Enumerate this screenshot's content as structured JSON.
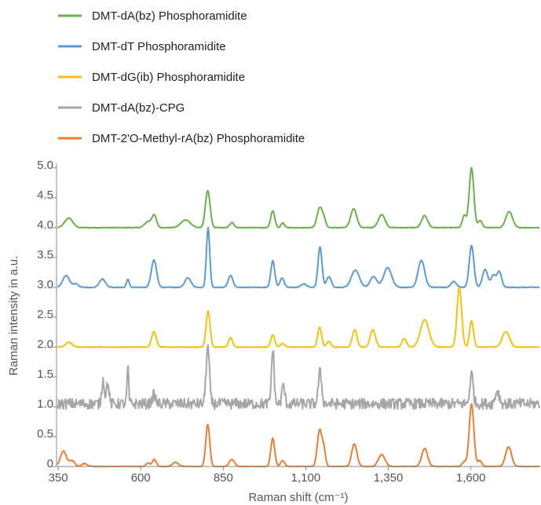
{
  "chart_data": {
    "type": "line",
    "title": "",
    "xlabel": "Raman shift (cm⁻¹)",
    "ylabel": "Raman intensity in a.u.",
    "xlim": [
      345,
      1810
    ],
    "ylim": [
      0,
      5.05
    ],
    "x_ticks": [
      350,
      600,
      850,
      1100,
      1350,
      1600
    ],
    "x_tick_labels": [
      "350",
      "600",
      "850",
      "1,100",
      "1,350",
      "1,600"
    ],
    "y_ticks": [
      0,
      0.5,
      1.0,
      1.5,
      2.0,
      2.5,
      3.0,
      3.5,
      4.0,
      4.5,
      5.0
    ],
    "y_tick_labels": [
      "0",
      "0.5",
      "1.0",
      "1.5",
      "2.0",
      "2.5",
      "3.0",
      "3.5",
      "4.0",
      "4.5",
      "5.0"
    ],
    "grid": false,
    "legend_position": "top-left",
    "series": [
      {
        "name": "DMT-dA(bz) Phosphoramidite",
        "color": "#6ab04c",
        "baseline": 4.0,
        "peaks": [
          [
            382,
            0.16,
            12
          ],
          [
            622,
            0.1,
            10
          ],
          [
            641,
            0.2,
            7
          ],
          [
            736,
            0.13,
            14
          ],
          [
            803,
            0.62,
            7
          ],
          [
            876,
            0.09,
            6
          ],
          [
            1000,
            0.28,
            6
          ],
          [
            1030,
            0.08,
            5
          ],
          [
            1142,
            0.33,
            8
          ],
          [
            1155,
            0.12,
            6
          ],
          [
            1245,
            0.32,
            9
          ],
          [
            1330,
            0.22,
            10
          ],
          [
            1460,
            0.2,
            9
          ],
          [
            1580,
            0.2,
            6
          ],
          [
            1602,
            1.0,
            7
          ],
          [
            1628,
            0.12,
            6
          ],
          [
            1716,
            0.27,
            10
          ]
        ]
      },
      {
        "name": "DMT-dT Phosphoramidite",
        "color": "#5b9bd5",
        "baseline": 3.0,
        "peaks": [
          [
            374,
            0.2,
            10
          ],
          [
            403,
            0.06,
            8
          ],
          [
            484,
            0.14,
            9
          ],
          [
            561,
            0.14,
            4
          ],
          [
            640,
            0.46,
            8
          ],
          [
            743,
            0.16,
            9
          ],
          [
            804,
            1.0,
            5
          ],
          [
            872,
            0.2,
            7
          ],
          [
            1000,
            0.44,
            6
          ],
          [
            1028,
            0.16,
            6
          ],
          [
            1094,
            0.06,
            8
          ],
          [
            1143,
            0.68,
            6
          ],
          [
            1170,
            0.18,
            7
          ],
          [
            1250,
            0.29,
            12
          ],
          [
            1305,
            0.18,
            10
          ],
          [
            1348,
            0.33,
            12
          ],
          [
            1450,
            0.45,
            10
          ],
          [
            1548,
            0.1,
            8
          ],
          [
            1602,
            0.7,
            7
          ],
          [
            1643,
            0.3,
            8
          ],
          [
            1668,
            0.2,
            7
          ],
          [
            1686,
            0.26,
            7
          ]
        ]
      },
      {
        "name": "DMT-dG(ib) Phosphoramidite",
        "color": "#f4c20d",
        "baseline": 2.0,
        "peaks": [
          [
            382,
            0.08,
            10
          ],
          [
            640,
            0.26,
            7
          ],
          [
            804,
            0.6,
            6
          ],
          [
            872,
            0.16,
            6
          ],
          [
            1000,
            0.2,
            6
          ],
          [
            1030,
            0.06,
            6
          ],
          [
            1142,
            0.33,
            6
          ],
          [
            1170,
            0.1,
            6
          ],
          [
            1248,
            0.29,
            7
          ],
          [
            1303,
            0.29,
            8
          ],
          [
            1398,
            0.14,
            7
          ],
          [
            1460,
            0.46,
            13
          ],
          [
            1565,
            1.0,
            7
          ],
          [
            1602,
            0.44,
            6
          ],
          [
            1706,
            0.26,
            11
          ]
        ]
      },
      {
        "name": "DMT-dA(bz)-CPG",
        "color": "#a6a6a6",
        "baseline": 1.05,
        "peaks": [
          [
            486,
            0.4,
            4
          ],
          [
            500,
            0.34,
            4
          ],
          [
            561,
            0.6,
            2.5
          ],
          [
            640,
            0.15,
            5
          ],
          [
            803,
            0.95,
            5
          ],
          [
            1000,
            0.92,
            4
          ],
          [
            1032,
            0.32,
            4
          ],
          [
            1143,
            0.53,
            5
          ],
          [
            1602,
            0.5,
            5
          ],
          [
            1680,
            0.22,
            6
          ]
        ]
      },
      {
        "name": "DMT-2'O-Methyl-rA(bz) Phosphoramidite",
        "color": "#ed7d31",
        "baseline": 0.0,
        "peaks": [
          [
            366,
            0.26,
            9
          ],
          [
            392,
            0.1,
            8
          ],
          [
            430,
            0.05,
            8
          ],
          [
            622,
            0.06,
            6
          ],
          [
            641,
            0.12,
            6
          ],
          [
            706,
            0.07,
            9
          ],
          [
            803,
            0.71,
            6
          ],
          [
            876,
            0.12,
            8
          ],
          [
            1000,
            0.47,
            6
          ],
          [
            1030,
            0.1,
            6
          ],
          [
            1142,
            0.62,
            7
          ],
          [
            1155,
            0.25,
            5
          ],
          [
            1247,
            0.38,
            8
          ],
          [
            1330,
            0.2,
            10
          ],
          [
            1460,
            0.3,
            9
          ],
          [
            1580,
            0.08,
            6
          ],
          [
            1602,
            1.05,
            7
          ],
          [
            1627,
            0.1,
            6
          ],
          [
            1714,
            0.33,
            9
          ]
        ]
      }
    ]
  }
}
